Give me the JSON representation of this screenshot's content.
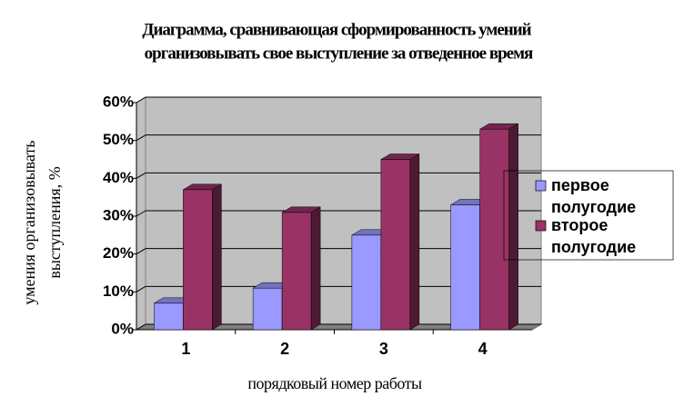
{
  "chart_data": {
    "type": "bar3d",
    "title": [
      "Диаграмма, сравнивающая сформированность умений",
      "организовывать свое выступление за отведенное время"
    ],
    "ylabel": [
      "умения организовывать",
      "выступления, %"
    ],
    "xlabel": "порядковый номер работы",
    "categories": [
      "1",
      "2",
      "3",
      "4"
    ],
    "series": [
      {
        "name": "первое полугодие",
        "color": "#9999ff",
        "values": [
          7,
          11,
          25,
          33
        ]
      },
      {
        "name": "второе полугодие",
        "color": "#993366",
        "values": [
          37,
          31,
          45,
          53
        ]
      }
    ],
    "ylim": [
      0,
      60
    ],
    "yticks": [
      {
        "value": 0,
        "label": "0%"
      },
      {
        "value": 10,
        "label": "10%"
      },
      {
        "value": 20,
        "label": "20%"
      },
      {
        "value": 30,
        "label": "30%"
      },
      {
        "value": 40,
        "label": "40%"
      },
      {
        "value": 50,
        "label": "50%"
      },
      {
        "value": 60,
        "label": "60%"
      }
    ],
    "grid": true,
    "legend": "right"
  }
}
